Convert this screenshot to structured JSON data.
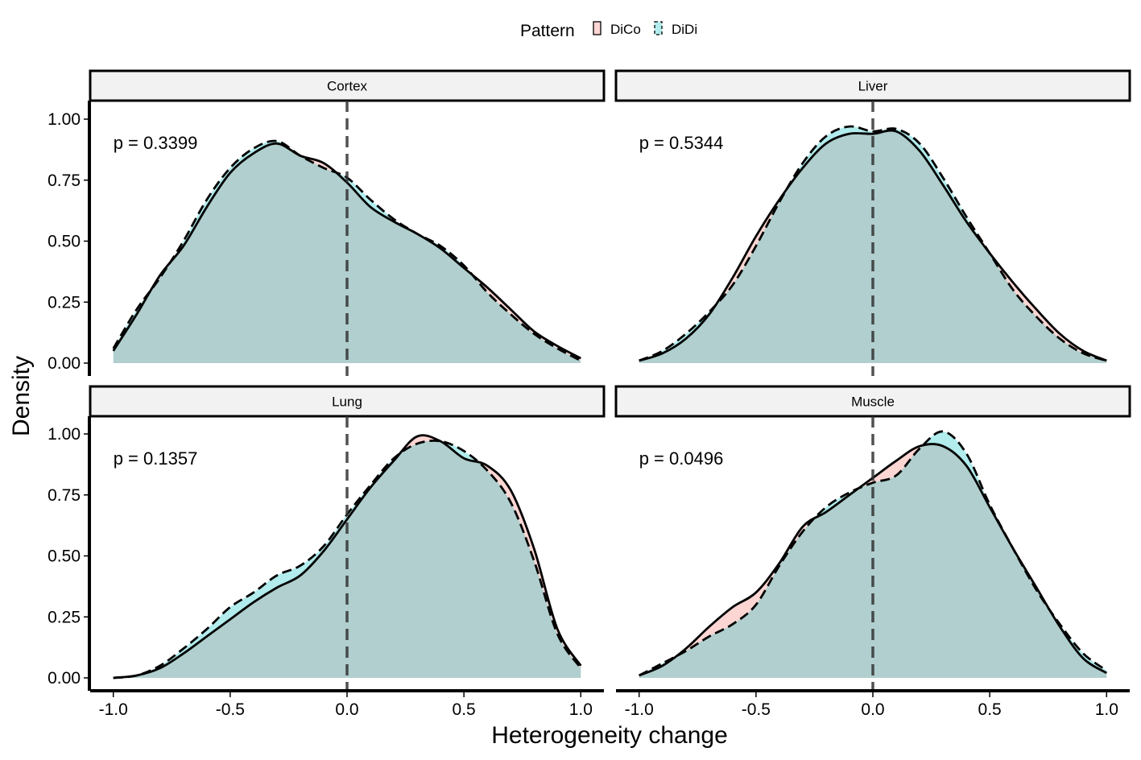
{
  "legend": {
    "title": "Pattern",
    "items": [
      {
        "label": "DiCo",
        "fill": "#F8766D",
        "linestyle": "solid"
      },
      {
        "label": "DiDi",
        "fill": "#00BFC4",
        "linestyle": "dashed"
      }
    ]
  },
  "axes": {
    "xlabel": "Heterogeneity change",
    "ylabel": "Density",
    "xticks": [
      "-1.0",
      "-0.5",
      "0.0",
      "0.5",
      "1.0"
    ],
    "yticks": [
      "0.00",
      "0.25",
      "0.50",
      "0.75",
      "1.00"
    ]
  },
  "chart_data": {
    "type": "area",
    "xlim": [
      -1.0,
      1.0
    ],
    "ylim": [
      0,
      1.0
    ],
    "vline_x": 0.0,
    "grid": false,
    "legend_position": "top",
    "colors": {
      "DiCo": "#F8766D",
      "DiDi": "#00BFC4"
    },
    "panels": [
      {
        "title": "Cortex",
        "annotation": "p = 0.3399",
        "x": [
          -1.0,
          -0.9,
          -0.8,
          -0.7,
          -0.6,
          -0.5,
          -0.4,
          -0.3,
          -0.2,
          -0.1,
          0.0,
          0.1,
          0.2,
          0.3,
          0.4,
          0.5,
          0.6,
          0.7,
          0.8,
          0.9,
          1.0
        ],
        "series": [
          {
            "name": "DiCo",
            "values": [
              0.05,
              0.2,
              0.36,
              0.48,
              0.64,
              0.78,
              0.86,
              0.9,
              0.85,
              0.82,
              0.74,
              0.64,
              0.58,
              0.53,
              0.47,
              0.39,
              0.31,
              0.22,
              0.13,
              0.07,
              0.02
            ]
          },
          {
            "name": "DiDi",
            "values": [
              0.06,
              0.22,
              0.35,
              0.5,
              0.67,
              0.8,
              0.88,
              0.91,
              0.85,
              0.8,
              0.76,
              0.67,
              0.59,
              0.53,
              0.48,
              0.4,
              0.29,
              0.2,
              0.12,
              0.06,
              0.01
            ]
          }
        ]
      },
      {
        "title": "Liver",
        "annotation": "p = 0.5344",
        "x": [
          -1.0,
          -0.9,
          -0.8,
          -0.7,
          -0.6,
          -0.5,
          -0.4,
          -0.3,
          -0.2,
          -0.1,
          0.0,
          0.1,
          0.2,
          0.3,
          0.4,
          0.5,
          0.6,
          0.7,
          0.8,
          0.9,
          1.0
        ],
        "series": [
          {
            "name": "DiCo",
            "values": [
              0.01,
              0.04,
              0.1,
              0.2,
              0.35,
              0.52,
              0.67,
              0.8,
              0.9,
              0.94,
              0.94,
              0.95,
              0.87,
              0.73,
              0.58,
              0.45,
              0.33,
              0.22,
              0.12,
              0.05,
              0.01
            ]
          },
          {
            "name": "DiDi",
            "values": [
              0.01,
              0.05,
              0.12,
              0.21,
              0.32,
              0.48,
              0.66,
              0.82,
              0.93,
              0.97,
              0.95,
              0.96,
              0.9,
              0.76,
              0.6,
              0.45,
              0.3,
              0.19,
              0.1,
              0.04,
              0.01
            ]
          }
        ]
      },
      {
        "title": "Lung",
        "annotation": "p = 0.1357",
        "x": [
          -1.0,
          -0.9,
          -0.8,
          -0.7,
          -0.6,
          -0.5,
          -0.4,
          -0.3,
          -0.2,
          -0.1,
          0.0,
          0.1,
          0.2,
          0.3,
          0.4,
          0.5,
          0.6,
          0.7,
          0.8,
          0.9,
          1.0
        ],
        "series": [
          {
            "name": "DiCo",
            "values": [
              0.0,
              0.01,
              0.04,
              0.1,
              0.17,
              0.24,
              0.31,
              0.37,
              0.42,
              0.52,
              0.65,
              0.78,
              0.89,
              0.99,
              0.97,
              0.9,
              0.87,
              0.77,
              0.53,
              0.2,
              0.05
            ]
          },
          {
            "name": "DiDi",
            "values": [
              0.0,
              0.01,
              0.05,
              0.12,
              0.2,
              0.29,
              0.35,
              0.42,
              0.46,
              0.54,
              0.67,
              0.79,
              0.9,
              0.96,
              0.97,
              0.93,
              0.85,
              0.72,
              0.48,
              0.18,
              0.04
            ]
          }
        ]
      },
      {
        "title": "Muscle",
        "annotation": "p = 0.0496",
        "x": [
          -1.0,
          -0.9,
          -0.8,
          -0.7,
          -0.6,
          -0.5,
          -0.4,
          -0.3,
          -0.2,
          -0.1,
          0.0,
          0.1,
          0.2,
          0.3,
          0.4,
          0.5,
          0.6,
          0.7,
          0.8,
          0.9,
          1.0
        ],
        "series": [
          {
            "name": "DiCo",
            "values": [
              0.01,
              0.05,
              0.12,
              0.21,
              0.29,
              0.35,
              0.47,
              0.62,
              0.68,
              0.75,
              0.82,
              0.89,
              0.95,
              0.95,
              0.87,
              0.7,
              0.53,
              0.37,
              0.21,
              0.08,
              0.02
            ]
          },
          {
            "name": "DiDi",
            "values": [
              0.01,
              0.06,
              0.11,
              0.17,
              0.22,
              0.3,
              0.46,
              0.6,
              0.7,
              0.76,
              0.8,
              0.83,
              0.94,
              1.01,
              0.92,
              0.71,
              0.53,
              0.36,
              0.22,
              0.1,
              0.03
            ]
          }
        ]
      }
    ]
  }
}
